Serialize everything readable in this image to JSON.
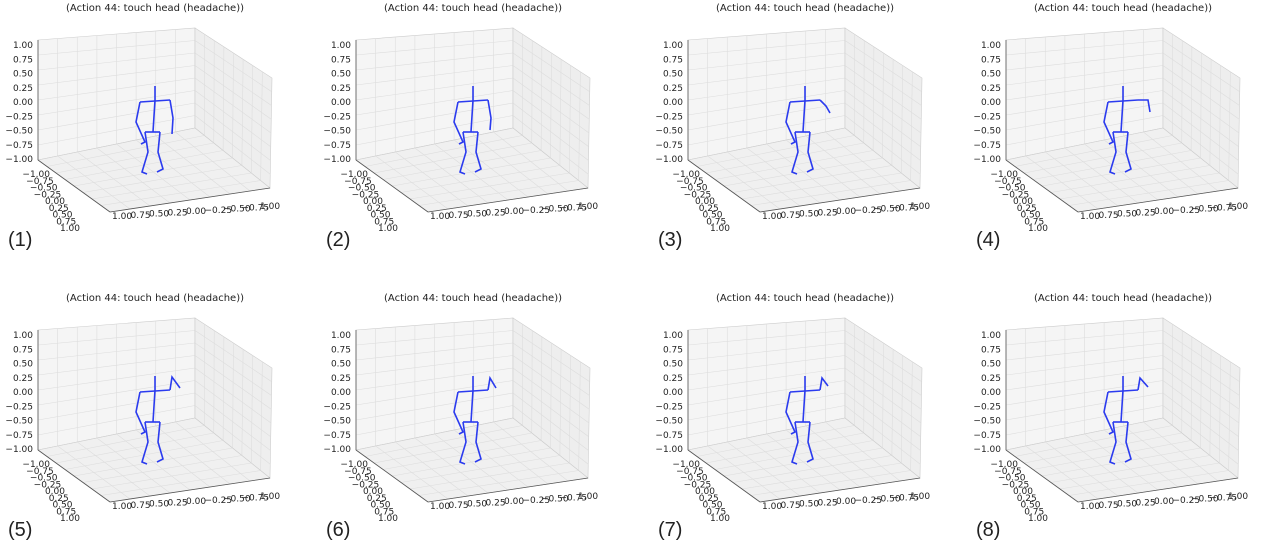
{
  "panels": [
    {
      "title": "(Action 44: touch head (headache))",
      "label": "(1)"
    },
    {
      "title": "(Action 44: touch head (headache))",
      "label": "(2)"
    },
    {
      "title": "(Action 44: touch head (headache))",
      "label": "(3)"
    },
    {
      "title": "(Action 44: touch head (headache))",
      "label": "(4)"
    },
    {
      "title": "(Action 44: touch head (headache))",
      "label": "(5)"
    },
    {
      "title": "(Action 44: touch head (headache))",
      "label": "(6)"
    },
    {
      "title": "(Action 44: touch head (headache))",
      "label": "(7)"
    },
    {
      "title": "(Action 44: touch head (headache))",
      "label": "(8)"
    }
  ],
  "axes": {
    "z_ticks": [
      "1.00",
      "0.75",
      "0.50",
      "0.25",
      "0.00",
      "−0.25",
      "−0.50",
      "−0.75",
      "−1.00"
    ],
    "x_ticks": [
      "−1.00",
      "−0.75",
      "−0.50",
      "−0.25",
      "0.00",
      "0.25",
      "0.50",
      "0.75",
      "1.00"
    ],
    "y_ticks": [
      "1.00",
      "0.75",
      "0.50",
      "0.25",
      "0.00",
      "−0.25",
      "−0.50",
      "−0.75",
      "1.00"
    ]
  }
}
